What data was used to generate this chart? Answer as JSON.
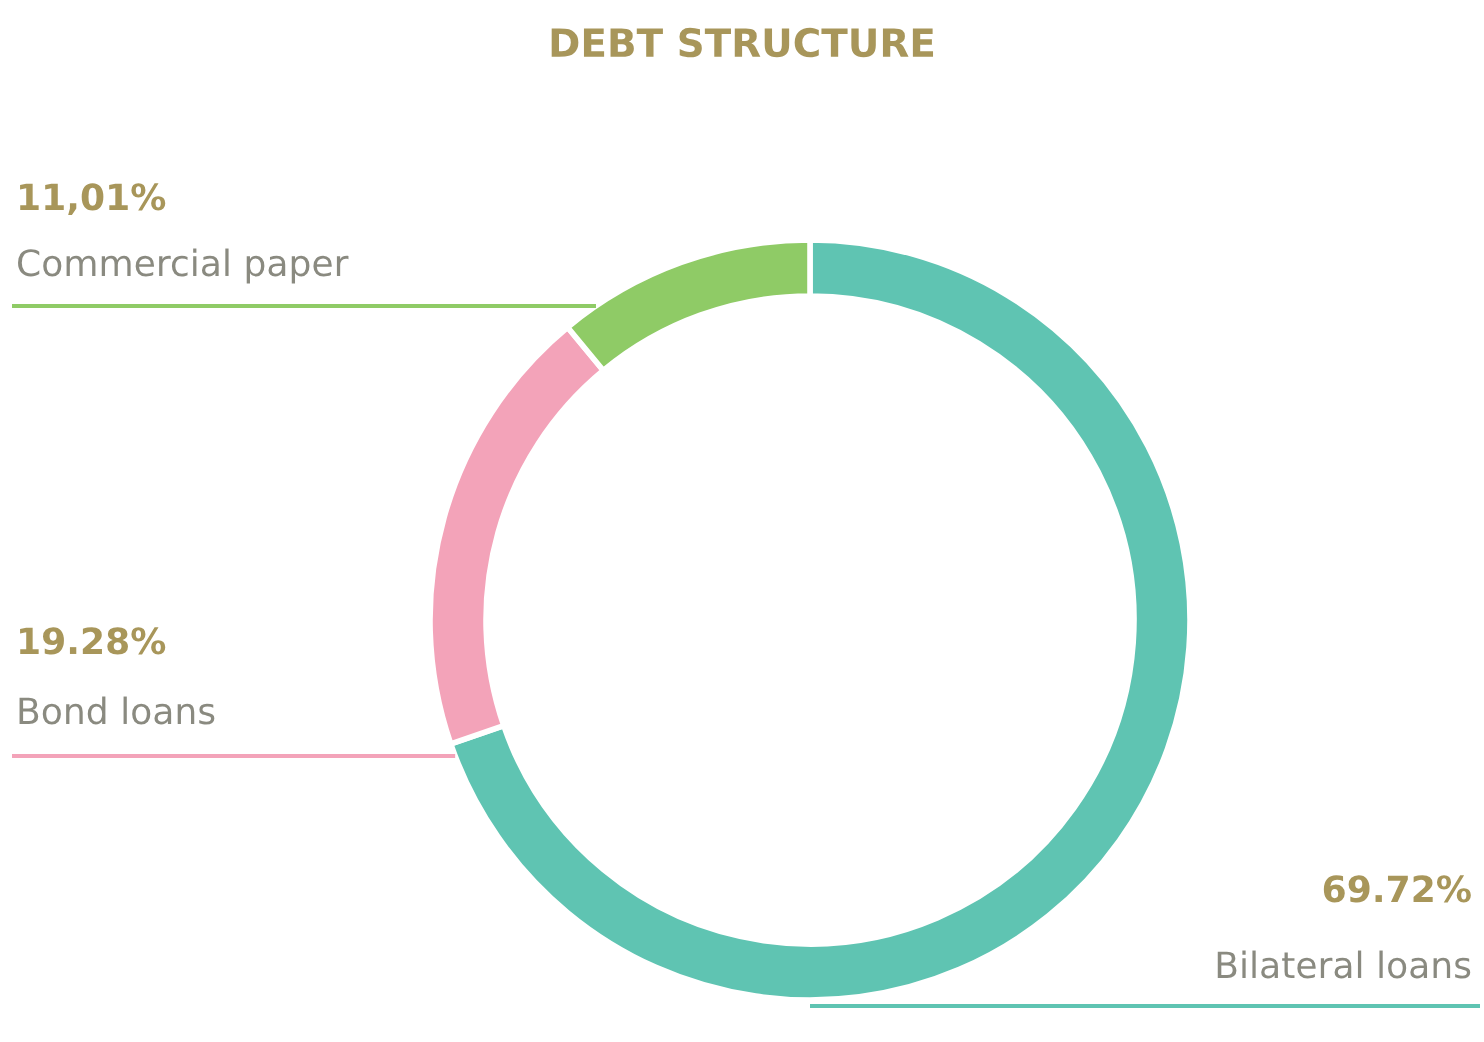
{
  "chart_data": {
    "type": "donut",
    "title": "DEBT STRUCTURE",
    "categories": [
      "Bilateral loans",
      "Bond loans",
      "Commercial paper"
    ],
    "values": [
      69.72,
      19.28,
      11.01
    ],
    "colors": [
      "#5fc4b2",
      "#f3a3b9",
      "#8fcb66"
    ],
    "value_labels": [
      "69.72%",
      "19.28%",
      "11,01%"
    ]
  }
}
